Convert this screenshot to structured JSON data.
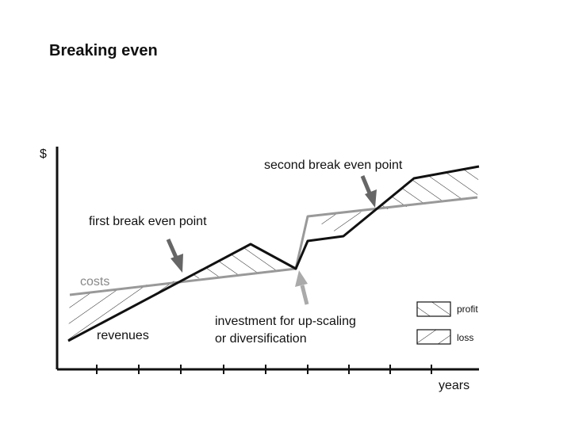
{
  "title": "Breaking even",
  "axes": {
    "y_label": "$",
    "x_label": "years"
  },
  "annotations": {
    "second_break_even": "second break even point",
    "first_break_even": "first break even point",
    "costs": "costs",
    "revenues": "revenues",
    "investment_line1": "investment for up-scaling",
    "investment_line2": "or diversification"
  },
  "legend": {
    "profit": "profit",
    "loss": "loss"
  },
  "colors": {
    "revenue_line": "#111111",
    "cost_line": "#999999",
    "arrow_dark": "#666666",
    "arrow_light": "#aaaaaa",
    "axis": "#111111"
  }
}
